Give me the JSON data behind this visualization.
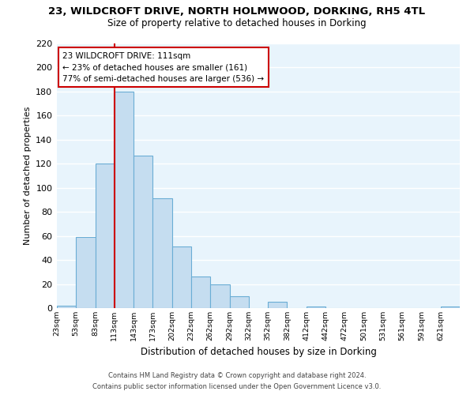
{
  "title": "23, WILDCROFT DRIVE, NORTH HOLMWOOD, DORKING, RH5 4TL",
  "subtitle": "Size of property relative to detached houses in Dorking",
  "xlabel": "Distribution of detached houses by size in Dorking",
  "ylabel": "Number of detached properties",
  "bar_color": "#c5ddf0",
  "bar_edge_color": "#6aadd5",
  "bg_color": "#e8f4fc",
  "grid_color": "#ffffff",
  "tick_labels": [
    "23sqm",
    "53sqm",
    "83sqm",
    "113sqm",
    "143sqm",
    "173sqm",
    "202sqm",
    "232sqm",
    "262sqm",
    "292sqm",
    "322sqm",
    "352sqm",
    "382sqm",
    "412sqm",
    "442sqm",
    "472sqm",
    "501sqm",
    "531sqm",
    "561sqm",
    "591sqm",
    "621sqm"
  ],
  "bar_values": [
    2,
    59,
    120,
    180,
    127,
    91,
    51,
    26,
    20,
    10,
    0,
    5,
    0,
    1,
    0,
    0,
    0,
    0,
    0,
    0,
    1
  ],
  "ylim": [
    0,
    220
  ],
  "yticks": [
    0,
    20,
    40,
    60,
    80,
    100,
    120,
    140,
    160,
    180,
    200,
    220
  ],
  "property_line_x": 3,
  "annotation_title": "23 WILDCROFT DRIVE: 111sqm",
  "annotation_line1": "← 23% of detached houses are smaller (161)",
  "annotation_line2": "77% of semi-detached houses are larger (536) →",
  "annotation_box_color": "#ffffff",
  "annotation_box_edge": "#cc0000",
  "vline_color": "#cc0000",
  "footer1": "Contains HM Land Registry data © Crown copyright and database right 2024.",
  "footer2": "Contains public sector information licensed under the Open Government Licence v3.0."
}
